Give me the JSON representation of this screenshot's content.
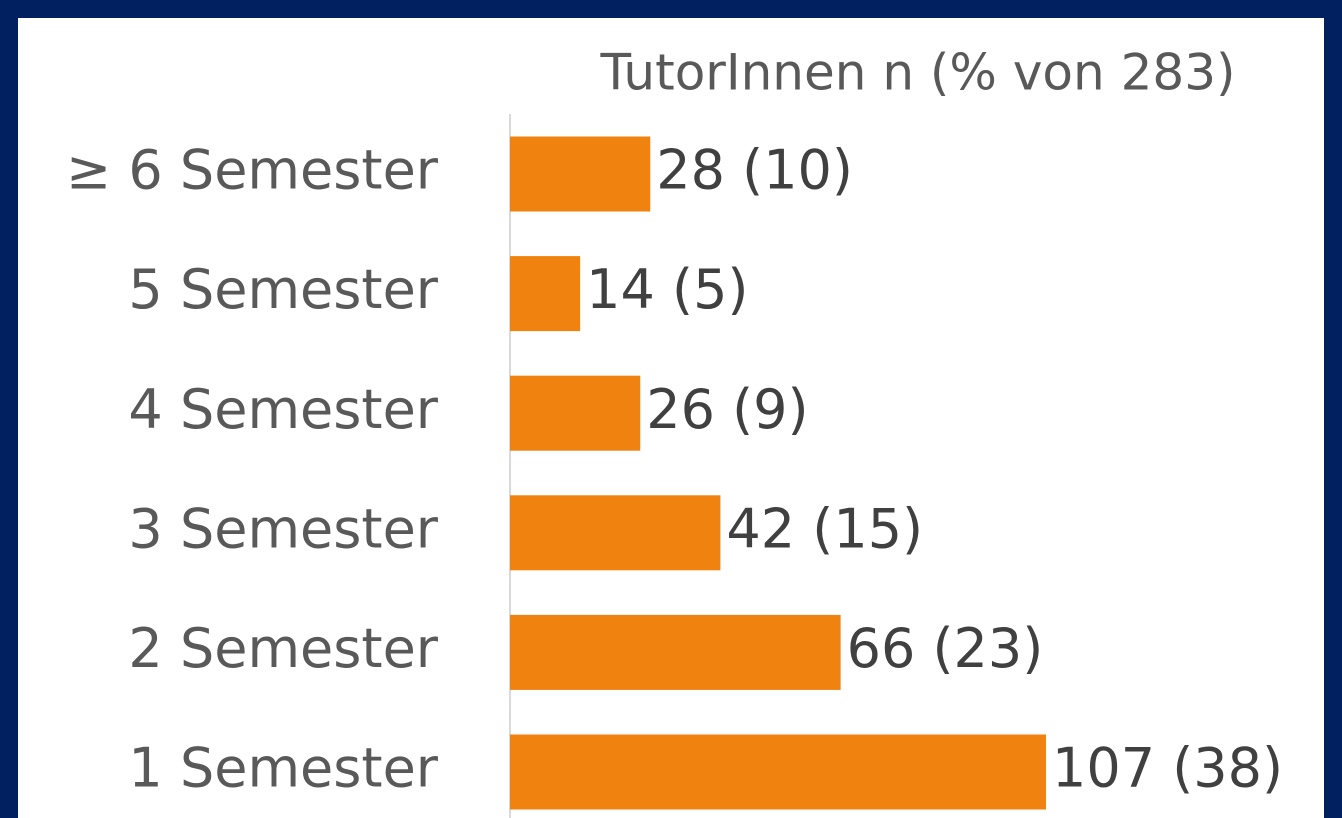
{
  "chart_data": {
    "type": "barh",
    "title": "TutorInnen n (% von 283)",
    "categories": [
      "≥ 6 Semester",
      "5 Semester",
      "4 Semester",
      "3 Semester",
      "2 Semester",
      "1 Semester"
    ],
    "values": [
      28,
      14,
      26,
      42,
      66,
      107
    ],
    "value_labels": [
      "28 (10)",
      "14 (5)",
      "26 (9)",
      "42 (15)",
      "66 (23)",
      "107 (38)"
    ],
    "color": "#f0820f"
  }
}
